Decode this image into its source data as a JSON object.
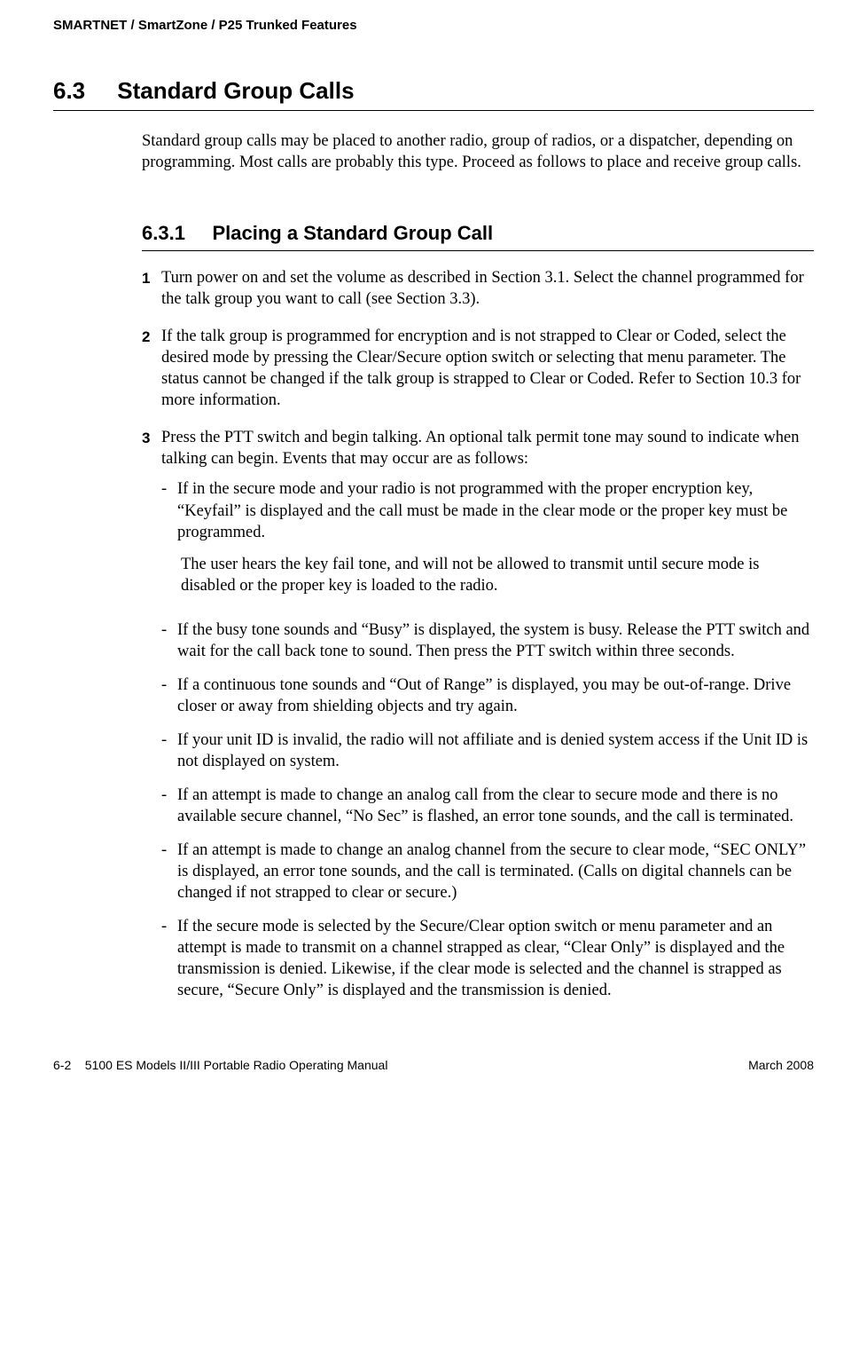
{
  "header": {
    "running": "SMARTNET / SmartZone / P25 Trunked Features"
  },
  "section": {
    "number": "6.3",
    "title": "Standard Group Calls",
    "intro": "Standard group calls may be placed to another radio, group of radios, or a dispatcher, depending on programming. Most calls are probably this type. Proceed as follows to place and receive group calls."
  },
  "subsection": {
    "number": "6.3.1",
    "title": "Placing a Standard Group Call"
  },
  "steps": [
    {
      "n": "1",
      "text": "Turn power on and set the volume as described in Section 3.1. Select the channel programmed for the talk group you want to call (see Section 3.3)."
    },
    {
      "n": "2",
      "text": "If the talk group is programmed for encryption and is not strapped to Clear or Coded, select the desired mode by pressing the Clear/Secure option switch or selecting that menu parameter. The status cannot be changed if the talk group is strapped to Clear or Coded. Refer to Section 10.3 for more information."
    },
    {
      "n": "3",
      "text": "Press the PTT switch and begin talking. An optional talk permit tone may sound to indicate when talking can begin. Events that may occur are as follows:"
    }
  ],
  "dashes": [
    {
      "text": "If in the secure mode and your radio is not programmed with the proper encryption key, “Keyfail” is displayed and the call must be made in the clear mode or the proper key must be programmed.",
      "note": "The user hears the key fail tone, and will not be allowed to transmit until secure mode is disabled or the proper key is loaded to the radio."
    },
    {
      "text": "If the busy tone sounds and “Busy” is displayed, the system is busy. Release the PTT switch and wait for the call back tone to sound. Then press the PTT switch within three seconds."
    },
    {
      "text": "If a continuous tone sounds and “Out of Range” is displayed, you may be out-of-range. Drive closer or away from shielding objects and try again."
    },
    {
      "text": "If your unit ID is invalid, the radio will not affiliate and is denied system access if the Unit ID is not displayed on system."
    },
    {
      "text": "If an attempt is made to change an analog call from the clear to secure mode and there is no available secure channel, “No Sec” is flashed, an error tone sounds, and the call is terminated."
    },
    {
      "text": "If an attempt is made to change an analog channel from the secure to clear mode, “SEC ONLY” is displayed, an error tone sounds, and the call is terminated. (Calls on digital channels can be changed if not strapped to clear or secure.)"
    },
    {
      "text": "If the secure mode is selected by the Secure/Clear option switch or menu parameter and an attempt is made to transmit on a channel strapped as clear, “Clear Only” is displayed and the transmission is denied. Likewise, if the clear mode is selected and the channel is strapped as secure, “Secure Only” is displayed and the transmission is denied."
    }
  ],
  "footer": {
    "page": "6-2",
    "manual": "5100 ES Models II/III Portable Radio Operating Manual",
    "date": "March 2008"
  }
}
